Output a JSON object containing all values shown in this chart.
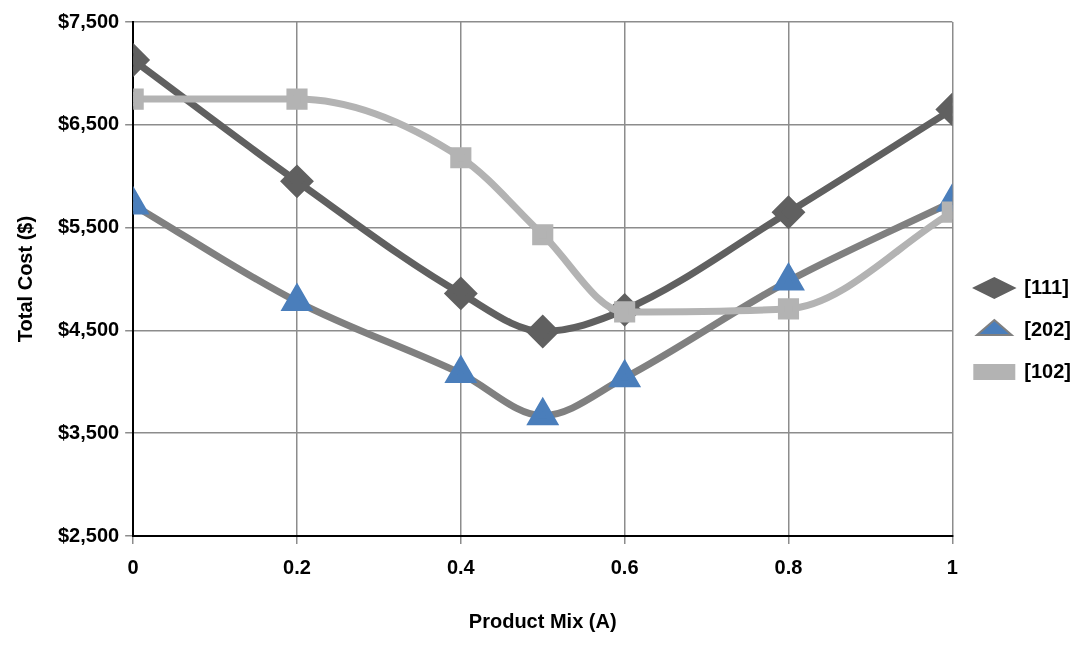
{
  "chart_data": {
    "type": "line",
    "xlabel": "Product Mix (A)",
    "ylabel": "Total Cost ($)",
    "x": [
      0,
      0.2,
      0.4,
      0.5,
      0.6,
      0.8,
      1
    ],
    "series": [
      {
        "name": "[111]",
        "color": "#606060",
        "marker": "diamond",
        "values": [
          7130,
          5950,
          4860,
          4490,
          4700,
          5650,
          6650
        ]
      },
      {
        "name": "[202]",
        "color": "#808080",
        "colors": [
          "#4a7ebb",
          "#4a7ebb",
          "#4a7ebb",
          "#4a7ebb",
          "#4a7ebb",
          "#4a7ebb",
          "#4a7ebb"
        ],
        "marker": "triangle",
        "values": [
          5720,
          4780,
          4080,
          3670,
          4040,
          4980,
          5750
        ]
      },
      {
        "name": "[102]",
        "color": "#b3b3b3",
        "marker": "square",
        "values": [
          6750,
          6750,
          6180,
          5430,
          4680,
          4710,
          5650
        ]
      }
    ],
    "xlim": [
      0,
      1
    ],
    "xticks": [
      0,
      0.2,
      0.4,
      0.6,
      0.8,
      1
    ],
    "ylim": [
      2500,
      7500
    ],
    "yticks": [
      {
        "value": 2500,
        "label": "$2,500"
      },
      {
        "value": 3500,
        "label": "$3,500"
      },
      {
        "value": 4500,
        "label": "$4,500"
      },
      {
        "value": 5500,
        "label": "$5,500"
      },
      {
        "value": 6500,
        "label": "$6,500"
      },
      {
        "value": 7500,
        "label": "$7,500"
      }
    ],
    "grid": true,
    "legend": "right",
    "line_style": "solid"
  }
}
